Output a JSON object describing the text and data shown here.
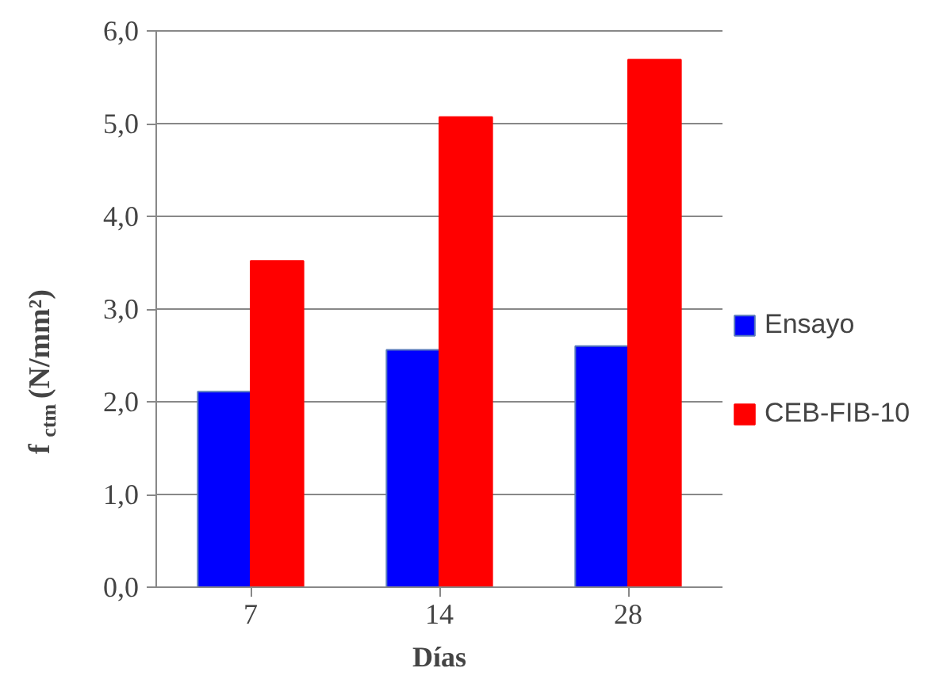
{
  "chart_data": {
    "type": "bar",
    "xlabel": "Días",
    "ylabel": "f$_{ctm}$ (N/mm²)",
    "categories": [
      "7",
      "14",
      "28"
    ],
    "series": [
      {
        "name": "Ensayo",
        "color": "#0000ff",
        "values": [
          2.11,
          2.56,
          2.6
        ]
      },
      {
        "name": "CEB-FIB-10",
        "color": "#ff0000",
        "values": [
          3.52,
          5.07,
          5.69
        ]
      }
    ],
    "ylim": [
      0,
      6
    ],
    "yticks": [
      {
        "value": 0,
        "label": "0,0"
      },
      {
        "value": 1,
        "label": "1,0"
      },
      {
        "value": 2,
        "label": "2,0"
      },
      {
        "value": 3,
        "label": "3,0"
      },
      {
        "value": 4,
        "label": "4,0"
      },
      {
        "value": 5,
        "label": "5,0"
      },
      {
        "value": 6,
        "label": "6,0"
      }
    ],
    "grid": "y",
    "legend": "right"
  }
}
